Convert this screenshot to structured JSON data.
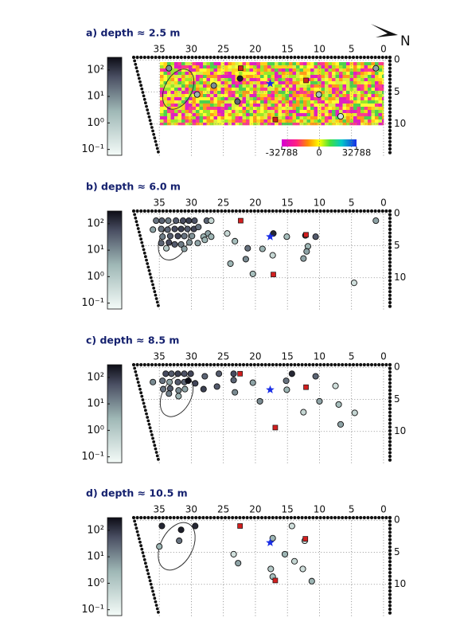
{
  "north": "N",
  "chart_data": [
    {
      "type": "scatter",
      "title": "a) depth ≈ 2.5 m",
      "xlim": [
        39,
        -1
      ],
      "ylim": [
        -0.4,
        15
      ],
      "xticks": [
        35,
        30,
        25,
        20,
        15,
        10,
        5,
        0
      ],
      "yticks": [
        0,
        5,
        10
      ],
      "grid": true,
      "colorbar": {
        "lim": [
          0.06,
          300
        ],
        "log": true,
        "ticks": [
          {
            "value": 0.1,
            "label": "10⁻¹"
          },
          {
            "value": 1,
            "label": "10⁰"
          },
          {
            "value": 10,
            "label": "10¹"
          },
          {
            "value": 100,
            "label": "10²"
          }
        ]
      },
      "raster": {
        "lim": [
          -32788,
          32788
        ],
        "ticks": [
          -32788,
          0,
          32788
        ]
      },
      "series": [
        {
          "marker": "circle",
          "x": [
            33.5,
            26.5,
            29.1,
            22.4,
            22.8,
            1.2,
            10.1,
            6.7
          ],
          "values": [
            1.3,
            4.0,
            5.4,
            2.9,
            6.5,
            1.3,
            5.4,
            8.8
          ],
          "c": [
            10,
            10,
            3,
            200,
            30,
            5,
            2,
            0.3
          ]
        },
        {
          "marker": "square",
          "color": "#d21f1f",
          "x": [
            22.3,
            12.1,
            16.9
          ],
          "values": [
            1.3,
            3.2,
            9.3
          ]
        },
        {
          "marker": "star",
          "color": "#1a2ee6",
          "x": [
            17.7
          ],
          "values": [
            3.7
          ]
        }
      ]
    },
    {
      "type": "scatter",
      "title": "b) depth ≈ 6.0 m",
      "xlim": [
        39,
        -1
      ],
      "ylim": [
        -0.4,
        15
      ],
      "xticks": [
        35,
        30,
        25,
        20,
        15,
        10,
        5,
        0
      ],
      "yticks": [
        0,
        5,
        10
      ],
      "grid": true,
      "colorbar": {
        "lim": [
          0.06,
          300
        ],
        "log": true,
        "ticks": [
          {
            "value": 0.1,
            "label": "10⁻¹"
          },
          {
            "value": 1,
            "label": "10⁰"
          },
          {
            "value": 10,
            "label": "10¹"
          },
          {
            "value": 100,
            "label": "10²"
          }
        ]
      },
      "series": [
        {
          "marker": "circle",
          "x": [
            35.5,
            34.6,
            33.6,
            32.4,
            31.3,
            30.4,
            29.5,
            27.6,
            26.9,
            1.2,
            36.0,
            34.7,
            33.7,
            32.6,
            31.6,
            30.6,
            29.6,
            28.9,
            24.4,
            27.4,
            17.2,
            12.2,
            10.6,
            34.5,
            33.3,
            32.1,
            31.1,
            29.9,
            28.1,
            26.9,
            15.1,
            34.7,
            33.5,
            32.6,
            31.6,
            30.3,
            29.0,
            27.9,
            23.2,
            33.9,
            31.1,
            21.2,
            18.9,
            11.8,
            12.0,
            21.5,
            17.3,
            12.5,
            23.9,
            20.4,
            4.6
          ],
          "values": [
            1.1,
            1.1,
            1.1,
            1.1,
            1.1,
            1.1,
            1.1,
            1.1,
            1.1,
            1.1,
            2.5,
            2.4,
            2.5,
            2.4,
            2.4,
            2.4,
            2.4,
            2.1,
            3.1,
            3.1,
            3.1,
            3.4,
            3.6,
            3.6,
            3.5,
            3.5,
            3.5,
            3.5,
            3.6,
            3.6,
            3.6,
            4.6,
            4.5,
            4.8,
            4.8,
            4.5,
            4.6,
            4.1,
            4.3,
            5.4,
            5.5,
            5.4,
            5.5,
            5.1,
            5.9,
            7.1,
            6.5,
            7.0,
            7.8,
            9.4,
            10.8
          ],
          "c": [
            20,
            30,
            15,
            40,
            60,
            80,
            50,
            30,
            0.5,
            5,
            5,
            20,
            30,
            60,
            80,
            40,
            70,
            20,
            0.5,
            5,
            150,
            100,
            40,
            15,
            40,
            70,
            20,
            8,
            3,
            3,
            2,
            30,
            60,
            40,
            15,
            8,
            5,
            3,
            2,
            1,
            5,
            20,
            3,
            3,
            5,
            10,
            0.5,
            5,
            3,
            2,
            0.3
          ]
        },
        {
          "marker": "square",
          "color": "#d21f1f",
          "x": [
            22.3,
            12.1,
            17.2
          ],
          "values": [
            1.1,
            3.3,
            9.5
          ]
        },
        {
          "marker": "star",
          "color": "#1a2ee6",
          "x": [
            17.7
          ],
          "values": [
            3.6
          ]
        }
      ]
    },
    {
      "type": "scatter",
      "title": "c) depth ≈ 8.5 m",
      "xlim": [
        39,
        -1
      ],
      "ylim": [
        -0.4,
        15
      ],
      "xticks": [
        35,
        30,
        25,
        20,
        15,
        10,
        5,
        0
      ],
      "yticks": [
        0,
        5,
        10
      ],
      "grid": true,
      "colorbar": {
        "lim": [
          0.06,
          300
        ],
        "log": true,
        "ticks": [
          {
            "value": 0.1,
            "label": "10⁻¹"
          },
          {
            "value": 1,
            "label": "10⁰"
          },
          {
            "value": 10,
            "label": "10¹"
          },
          {
            "value": 100,
            "label": "10²"
          }
        ]
      },
      "series": [
        {
          "marker": "circle",
          "x": [
            34.0,
            33.1,
            32.1,
            31.1,
            30.1,
            27.9,
            25.7,
            23.4,
            14.3,
            10.6,
            36.0,
            34.5,
            33.4,
            32.1,
            31.1,
            30.5,
            29.4,
            23.4,
            20.4,
            15.2,
            7.5,
            34.4,
            33.3,
            32.0,
            31.0,
            28.1,
            26.0,
            23.2,
            15.1,
            33.5,
            32.0,
            10.0,
            19.3,
            7.0,
            12.5,
            4.5,
            6.7
          ],
          "values": [
            1.0,
            1.0,
            1.0,
            1.0,
            1.0,
            1.4,
            1.0,
            1.0,
            1.0,
            1.4,
            2.3,
            2.1,
            2.3,
            2.3,
            2.3,
            2.1,
            2.5,
            2.0,
            2.4,
            2.1,
            2.9,
            3.4,
            3.3,
            3.6,
            3.4,
            3.4,
            3.0,
            3.9,
            3.5,
            4.1,
            4.5,
            5.3,
            5.3,
            5.8,
            7.0,
            7.1,
            8.9
          ],
          "c": [
            60,
            40,
            80,
            50,
            70,
            30,
            40,
            60,
            150,
            30,
            10,
            20,
            5,
            40,
            30,
            300,
            70,
            30,
            5,
            20,
            0.3,
            20,
            40,
            10,
            5,
            80,
            40,
            10,
            3,
            15,
            3,
            5,
            10,
            2,
            0.5,
            0.5,
            5
          ]
        },
        {
          "marker": "square",
          "color": "#d21f1f",
          "x": [
            22.4,
            12.1,
            16.9
          ],
          "values": [
            1.0,
            3.1,
            9.4
          ]
        },
        {
          "marker": "star",
          "color": "#1a2ee6",
          "x": [
            17.7
          ],
          "values": [
            3.5
          ]
        }
      ]
    },
    {
      "type": "scatter",
      "title": "d) depth ≈ 10.5 m",
      "xlim": [
        39,
        -1
      ],
      "ylim": [
        -0.4,
        15
      ],
      "xticks": [
        35,
        30,
        25,
        20,
        15,
        10,
        5,
        0
      ],
      "yticks": [
        0,
        5,
        10
      ],
      "grid": true,
      "colorbar": {
        "lim": [
          0.06,
          300
        ],
        "log": true,
        "ticks": [
          {
            "value": 0.1,
            "label": "10⁻¹"
          },
          {
            "value": 1,
            "label": "10⁰"
          },
          {
            "value": 10,
            "label": "10¹"
          },
          {
            "value": 100,
            "label": "10²"
          }
        ]
      },
      "series": [
        {
          "marker": "circle",
          "x": [
            34.6,
            31.6,
            29.4,
            35.0,
            31.9,
            17.3,
            14.3,
            12.3,
            23.4,
            22.7,
            15.4,
            13.9,
            17.6,
            12.6,
            17.3,
            11.2
          ],
          "values": [
            0.9,
            1.5,
            0.9,
            4.1,
            3.2,
            2.8,
            0.9,
            3.2,
            5.3,
            6.7,
            5.3,
            6.4,
            7.6,
            7.6,
            8.8,
            9.5
          ],
          "c": [
            150,
            200,
            150,
            3,
            20,
            3,
            0.3,
            0.5,
            0.3,
            5,
            3,
            0.5,
            1,
            0.3,
            2,
            3
          ]
        },
        {
          "marker": "square",
          "color": "#d21f1f",
          "x": [
            22.4,
            12.2,
            16.9
          ],
          "values": [
            0.9,
            2.9,
            9.4
          ]
        },
        {
          "marker": "star",
          "color": "#1a2ee6",
          "x": [
            17.7
          ],
          "values": [
            3.5
          ]
        }
      ]
    }
  ]
}
